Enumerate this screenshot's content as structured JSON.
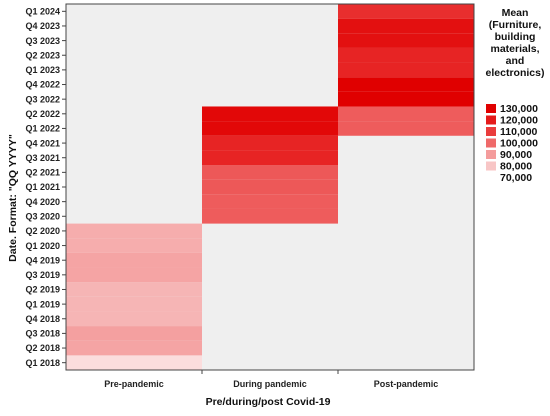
{
  "chart_data": {
    "type": "heatmap",
    "xlabel": "Pre/during/post Covid-19",
    "ylabel": "Date. Format: \"QQ YYYY\"",
    "x_categories": [
      "Pre-pandemic",
      "During pandemic",
      "Post-pandemic"
    ],
    "y_categories": [
      "Q1 2018",
      "Q2 2018",
      "Q3 2018",
      "Q4 2018",
      "Q1 2019",
      "Q2 2019",
      "Q3 2019",
      "Q4 2019",
      "Q1 2020",
      "Q2 2020",
      "Q3 2020",
      "Q4 2020",
      "Q1 2021",
      "Q2 2021",
      "Q3 2021",
      "Q4 2021",
      "Q1 2022",
      "Q2 2022",
      "Q3 2022",
      "Q4 2022",
      "Q1 2023",
      "Q2 2023",
      "Q3 2023",
      "Q4 2023",
      "Q1 2024"
    ],
    "cells": [
      {
        "x": "Pre-pandemic",
        "y": "Q1 2018",
        "value": 76000
      },
      {
        "x": "Pre-pandemic",
        "y": "Q2 2018",
        "value": 88000
      },
      {
        "x": "Pre-pandemic",
        "y": "Q3 2018",
        "value": 89000
      },
      {
        "x": "Pre-pandemic",
        "y": "Q4 2018",
        "value": 84000
      },
      {
        "x": "Pre-pandemic",
        "y": "Q1 2019",
        "value": 84000
      },
      {
        "x": "Pre-pandemic",
        "y": "Q2 2019",
        "value": 84000
      },
      {
        "x": "Pre-pandemic",
        "y": "Q3 2019",
        "value": 88000
      },
      {
        "x": "Pre-pandemic",
        "y": "Q4 2019",
        "value": 88000
      },
      {
        "x": "Pre-pandemic",
        "y": "Q1 2020",
        "value": 86000
      },
      {
        "x": "Pre-pandemic",
        "y": "Q2 2020",
        "value": 86000
      },
      {
        "x": "During pandemic",
        "y": "Q3 2020",
        "value": 103000
      },
      {
        "x": "During pandemic",
        "y": "Q4 2020",
        "value": 103000
      },
      {
        "x": "During pandemic",
        "y": "Q1 2021",
        "value": 104000
      },
      {
        "x": "During pandemic",
        "y": "Q2 2021",
        "value": 104000
      },
      {
        "x": "During pandemic",
        "y": "Q3 2021",
        "value": 117000
      },
      {
        "x": "During pandemic",
        "y": "Q4 2021",
        "value": 117000
      },
      {
        "x": "During pandemic",
        "y": "Q1 2022",
        "value": 127000
      },
      {
        "x": "During pandemic",
        "y": "Q2 2022",
        "value": 127000
      },
      {
        "x": "Post-pandemic",
        "y": "Q1 2022",
        "value": 103000
      },
      {
        "x": "Post-pandemic",
        "y": "Q2 2022",
        "value": 103000
      },
      {
        "x": "Post-pandemic",
        "y": "Q3 2022",
        "value": 132000
      },
      {
        "x": "Post-pandemic",
        "y": "Q4 2022",
        "value": 132000
      },
      {
        "x": "Post-pandemic",
        "y": "Q1 2023",
        "value": 117000
      },
      {
        "x": "Post-pandemic",
        "y": "Q2 2023",
        "value": 117000
      },
      {
        "x": "Post-pandemic",
        "y": "Q3 2023",
        "value": 124000
      },
      {
        "x": "Post-pandemic",
        "y": "Q4 2023",
        "value": 124000
      },
      {
        "x": "Post-pandemic",
        "y": "Q1 2024",
        "value": 114000
      }
    ],
    "empty_cell_color": "#efefef",
    "legend": {
      "title_lines": [
        "Mean",
        "(Furniture,",
        "building",
        "materials,",
        "and",
        "electronics)"
      ],
      "entries": [
        {
          "label": "130,000",
          "color": "#e00000"
        },
        {
          "label": "120,000",
          "color": "#e51a1a"
        },
        {
          "label": "110,000",
          "color": "#ea3c3c"
        },
        {
          "label": "100,000",
          "color": "#ef6a6a"
        },
        {
          "label": "90,000",
          "color": "#f49c9c"
        },
        {
          "label": "80,000",
          "color": "#f8c6c6"
        },
        {
          "label": "70,000",
          "color": "#ffffff"
        }
      ],
      "placement": "right"
    }
  }
}
